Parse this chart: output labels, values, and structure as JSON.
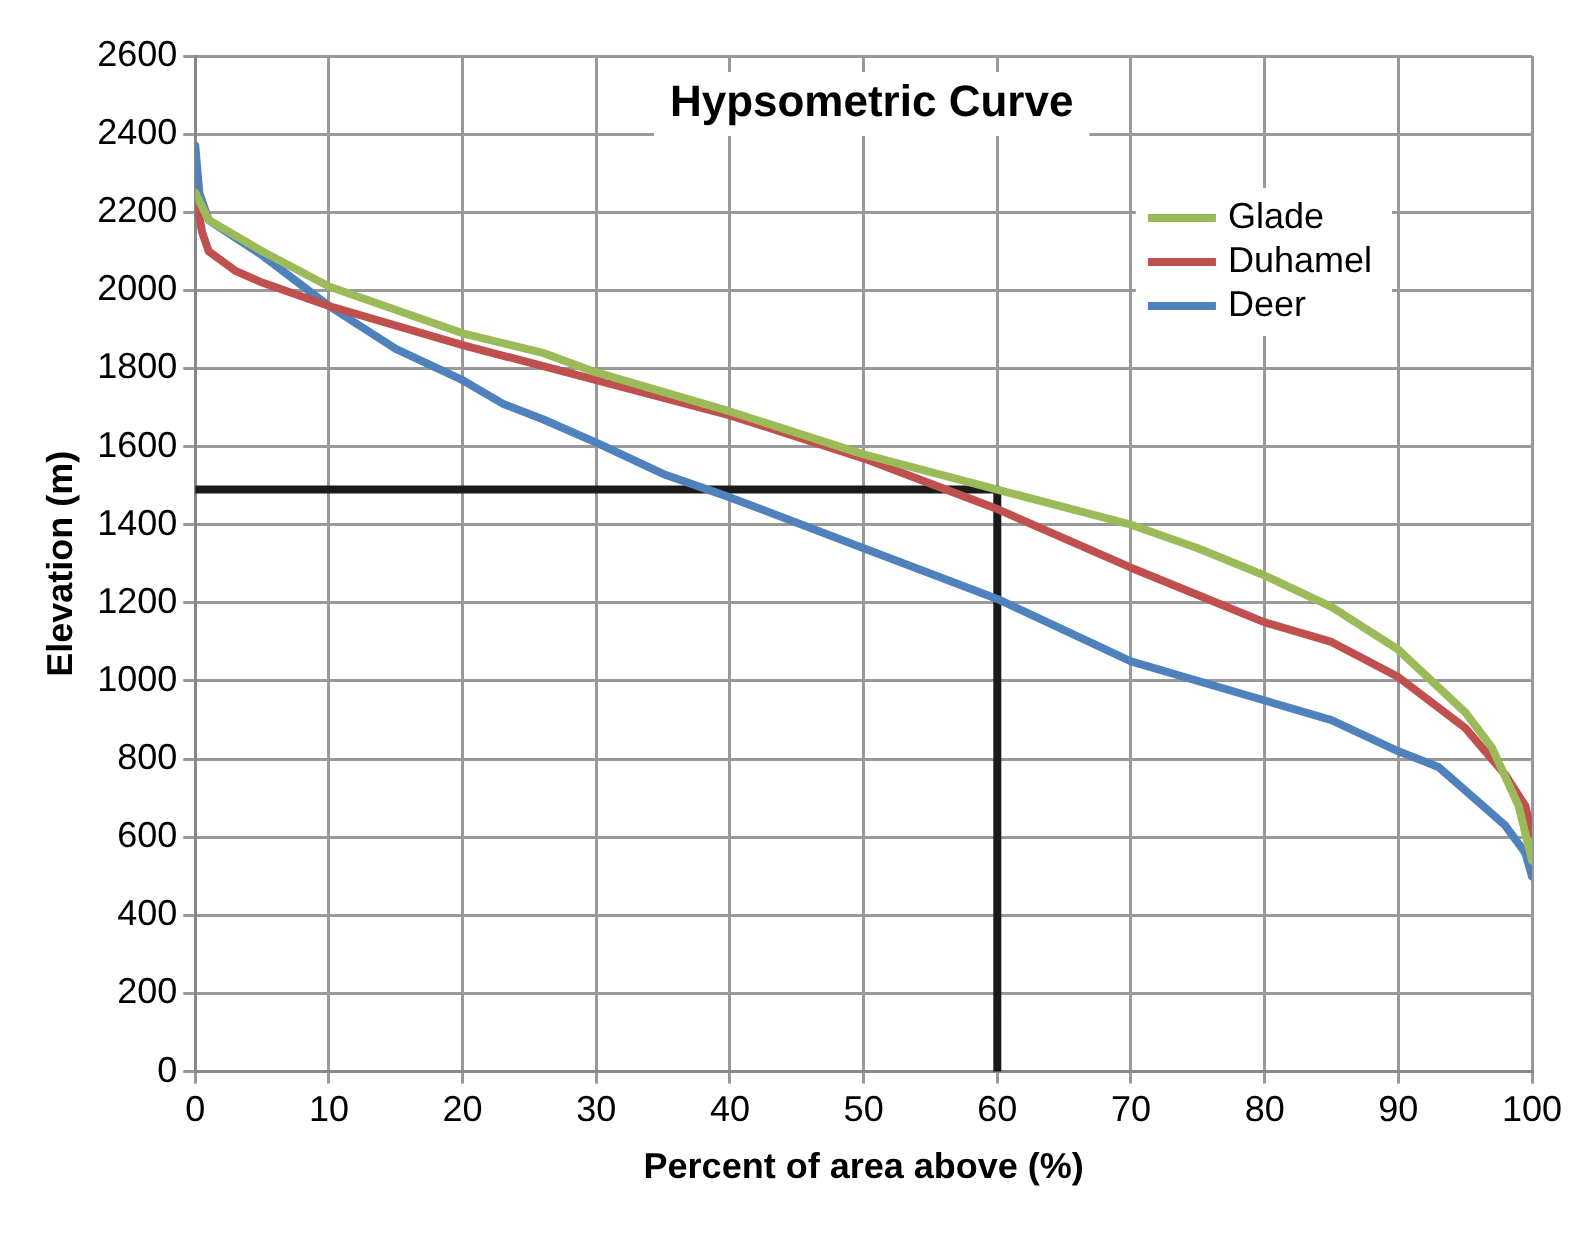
{
  "chart_data": {
    "type": "line",
    "title": "Hypsometric Curve",
    "xlabel": "Percent of area above (%)",
    "ylabel": "Elevation (m)",
    "xlim": [
      0,
      100
    ],
    "xticks": [
      0,
      10,
      20,
      30,
      40,
      50,
      60,
      70,
      80,
      90,
      100
    ],
    "ylim": [
      0,
      2600
    ],
    "yticks": [
      0,
      200,
      400,
      600,
      800,
      1000,
      1200,
      1400,
      1600,
      1800,
      2000,
      2200,
      2400,
      2600
    ],
    "grid": true,
    "legend": "top right",
    "marker": "none",
    "line_style": "solid",
    "series": [
      {
        "name": "Glade",
        "color": "#9bbb59",
        "x": [
          0,
          1,
          5,
          10,
          20,
          26,
          30,
          40,
          50,
          60,
          70,
          75,
          80,
          85,
          90,
          95,
          97,
          99,
          100
        ],
        "values": [
          2250,
          2180,
          2100,
          2010,
          1890,
          1840,
          1790,
          1690,
          1580,
          1490,
          1400,
          1340,
          1270,
          1190,
          1080,
          920,
          830,
          680,
          540
        ]
      },
      {
        "name": "Duhamel",
        "color": "#c0504d",
        "x": [
          0,
          0.5,
          1,
          3,
          5,
          10,
          20,
          30,
          40,
          50,
          60,
          70,
          75,
          80,
          85,
          90,
          95,
          98,
          99.5,
          100
        ],
        "values": [
          2250,
          2150,
          2100,
          2050,
          2020,
          1960,
          1860,
          1770,
          1680,
          1570,
          1440,
          1290,
          1220,
          1150,
          1100,
          1010,
          880,
          760,
          680,
          610
        ]
      },
      {
        "name": "Deer",
        "color": "#4f81bd",
        "x": [
          0,
          0.3,
          1,
          5,
          10,
          15,
          20,
          23,
          26,
          30,
          35,
          40,
          50,
          60,
          70,
          80,
          85,
          90,
          93,
          96,
          98,
          99.5,
          100
        ],
        "values": [
          2370,
          2250,
          2180,
          2090,
          1960,
          1850,
          1770,
          1710,
          1670,
          1610,
          1530,
          1470,
          1340,
          1210,
          1050,
          950,
          900,
          820,
          780,
          690,
          630,
          560,
          500
        ]
      },
      {
        "color": "#1a1a1a",
        "x": [
          0,
          60,
          60
        ],
        "values": [
          1490,
          1490,
          0
        ]
      }
    ]
  }
}
